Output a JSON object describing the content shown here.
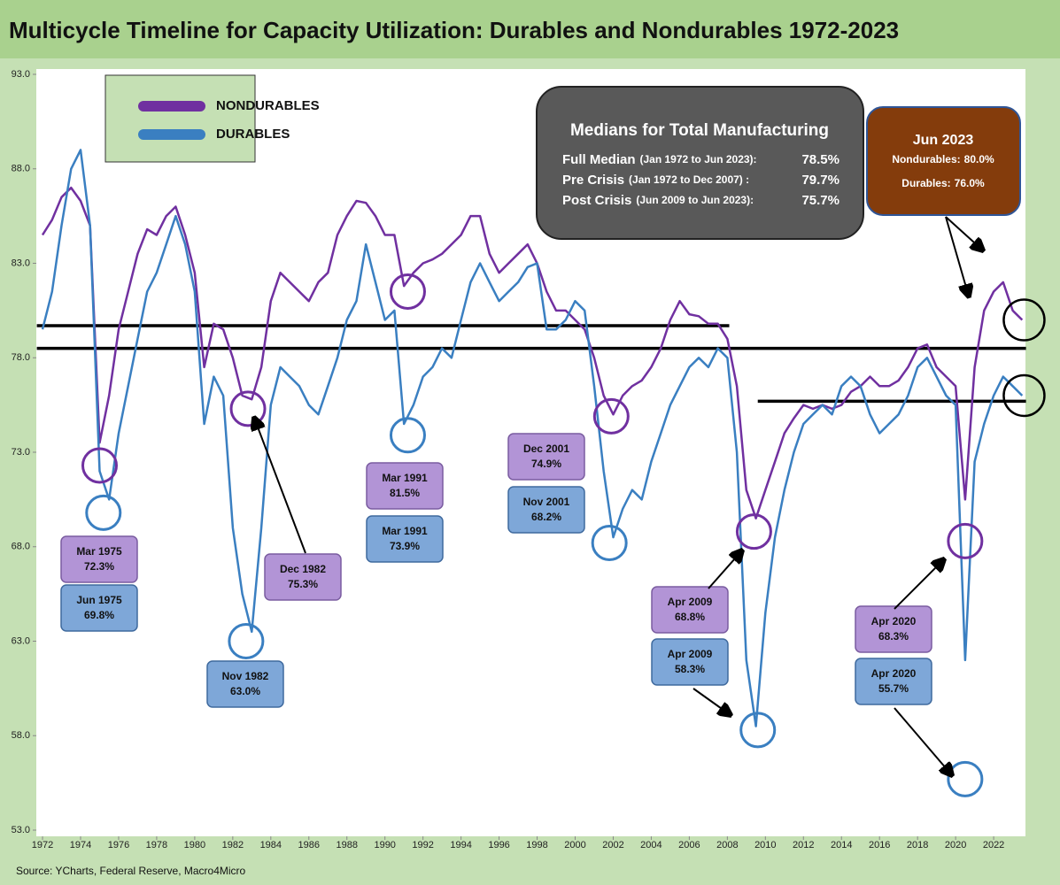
{
  "chart_data": {
    "type": "line",
    "title": "Multicycle Timeline for Capacity Utilization: Durables and Nondurables 1972-2023",
    "source": "Source: YCharts, Federal Reserve, Macro4Micro",
    "xlim": [
      1971.7,
      2023.7
    ],
    "xticks": [
      1972,
      1974,
      1976,
      1978,
      1980,
      1982,
      1984,
      1986,
      1988,
      1990,
      1992,
      1994,
      1996,
      1998,
      2000,
      2002,
      2004,
      2006,
      2008,
      2010,
      2012,
      2014,
      2016,
      2018,
      2020,
      2022
    ],
    "ylim": [
      53,
      93
    ],
    "yticks": [
      {
        "value": 53,
        "label": "53.0"
      },
      {
        "value": 58,
        "label": "58.0"
      },
      {
        "value": 63,
        "label": "63.0"
      },
      {
        "value": 68,
        "label": "68.0"
      },
      {
        "value": 73,
        "label": "73.0"
      },
      {
        "value": 78,
        "label": "78.0"
      },
      {
        "value": 83,
        "label": "83.0"
      },
      {
        "value": 88,
        "label": "88.0"
      },
      {
        "value": 93,
        "label": "93.0"
      }
    ],
    "x": [
      1972.0,
      1972.5,
      1973.0,
      1973.5,
      1974.0,
      1974.5,
      1975.0,
      1975.5,
      1976.0,
      1976.5,
      1977.0,
      1977.5,
      1978.0,
      1978.5,
      1979.0,
      1979.5,
      1980.0,
      1980.5,
      1981.0,
      1981.5,
      1982.0,
      1982.5,
      1983.0,
      1983.5,
      1984.0,
      1984.5,
      1985.0,
      1985.5,
      1986.0,
      1986.5,
      1987.0,
      1987.5,
      1988.0,
      1988.5,
      1989.0,
      1989.5,
      1990.0,
      1990.5,
      1991.0,
      1991.5,
      1992.0,
      1992.5,
      1993.0,
      1993.5,
      1994.0,
      1994.5,
      1995.0,
      1995.5,
      1996.0,
      1996.5,
      1997.0,
      1997.5,
      1998.0,
      1998.5,
      1999.0,
      1999.5,
      2000.0,
      2000.5,
      2001.0,
      2001.5,
      2002.0,
      2002.5,
      2003.0,
      2003.5,
      2004.0,
      2004.5,
      2005.0,
      2005.5,
      2006.0,
      2006.5,
      2007.0,
      2007.5,
      2008.0,
      2008.5,
      2009.0,
      2009.5,
      2010.0,
      2010.5,
      2011.0,
      2011.5,
      2012.0,
      2012.5,
      2013.0,
      2013.5,
      2014.0,
      2014.5,
      2015.0,
      2015.5,
      2016.0,
      2016.5,
      2017.0,
      2017.5,
      2018.0,
      2018.5,
      2019.0,
      2019.5,
      2020.0,
      2020.5,
      2021.0,
      2021.5,
      2022.0,
      2022.5,
      2023.0,
      2023.5
    ],
    "series": [
      {
        "name": "NONDURABLES",
        "color": "#7030a0",
        "values": [
          84.5,
          85.3,
          86.5,
          87.0,
          86.3,
          85.0,
          73.5,
          76.0,
          79.5,
          81.5,
          83.5,
          84.8,
          84.5,
          85.5,
          86.0,
          84.5,
          82.5,
          77.5,
          79.8,
          79.5,
          78.0,
          76.0,
          75.8,
          77.5,
          81.0,
          82.5,
          82.0,
          81.5,
          81.0,
          82.0,
          82.5,
          84.5,
          85.5,
          86.3,
          86.2,
          85.5,
          84.5,
          84.5,
          81.8,
          82.5,
          83.0,
          83.2,
          83.5,
          84.0,
          84.5,
          85.5,
          85.5,
          83.5,
          82.5,
          83.0,
          83.5,
          84.0,
          83.0,
          81.5,
          80.5,
          80.5,
          80.0,
          79.5,
          78.0,
          76.0,
          75.0,
          76.0,
          76.5,
          76.8,
          77.5,
          78.5,
          80.0,
          81.0,
          80.3,
          80.2,
          79.8,
          79.8,
          79.0,
          76.5,
          71.0,
          69.5,
          71.0,
          72.5,
          74.0,
          74.8,
          75.5,
          75.3,
          75.5,
          75.3,
          75.5,
          76.2,
          76.5,
          77.0,
          76.5,
          76.5,
          76.8,
          77.5,
          78.5,
          78.7,
          77.5,
          77.0,
          76.5,
          70.5,
          77.5,
          80.5,
          81.5,
          82.0,
          80.5,
          80.0
        ]
      },
      {
        "name": "DURABLES",
        "color": "#3a7fc1",
        "values": [
          79.5,
          81.5,
          85.0,
          88.0,
          89.0,
          85.0,
          72.0,
          70.5,
          74.0,
          76.5,
          79.0,
          81.5,
          82.5,
          84.0,
          85.5,
          84.0,
          81.5,
          74.5,
          77.0,
          76.0,
          69.0,
          65.5,
          63.5,
          69.0,
          75.5,
          77.5,
          77.0,
          76.5,
          75.5,
          75.0,
          76.5,
          78.0,
          80.0,
          81.0,
          84.0,
          82.0,
          80.0,
          80.5,
          74.5,
          75.5,
          77.0,
          77.5,
          78.5,
          78.0,
          80.0,
          82.0,
          83.0,
          82.0,
          81.0,
          81.5,
          82.0,
          82.8,
          83.0,
          79.5,
          79.5,
          80.0,
          81.0,
          80.5,
          76.5,
          72.0,
          68.5,
          70.0,
          71.0,
          70.5,
          72.5,
          74.0,
          75.5,
          76.5,
          77.5,
          78.0,
          77.5,
          78.5,
          78.0,
          73.0,
          62.0,
          58.5,
          64.5,
          68.5,
          71.0,
          73.0,
          74.5,
          75.0,
          75.5,
          75.0,
          76.5,
          77.0,
          76.5,
          75.0,
          74.0,
          74.5,
          75.0,
          76.0,
          77.5,
          78.0,
          77.0,
          76.0,
          75.5,
          62.0,
          72.5,
          74.5,
          76.0,
          77.0,
          76.5,
          76.0
        ]
      }
    ],
    "legend": "top-left",
    "medians": {
      "title": "Medians for Total Manufacturing",
      "rows": [
        {
          "label": "Full Median",
          "range": "(Jan 1972 to Jun 2023):",
          "value": 78.5,
          "value_label": "78.5%",
          "span": [
            1971.7,
            2023.7
          ]
        },
        {
          "label": "Pre Crisis",
          "range": "(Jan 1972 to Dec 2007) :",
          "value": 79.7,
          "value_label": "79.7%",
          "span": [
            1971.7,
            2008.1
          ]
        },
        {
          "label": "Post Crisis",
          "range": "(Jun 2009 to Jun 2023):",
          "value": 75.7,
          "value_label": "75.7%",
          "span": [
            2009.6,
            2023.7
          ]
        }
      ]
    },
    "latest": {
      "title": "Jun 2023",
      "x": 2023.6,
      "rows": [
        {
          "label": "Nondurables:",
          "value": 80.0,
          "value_label": "80.0%"
        },
        {
          "label": "Durables:",
          "value": 76.0,
          "value_label": "76.0%"
        }
      ]
    },
    "annotations": [
      {
        "title": "Mar 1975",
        "x": 1975.0,
        "value": 72.3,
        "value_label": "72.3%",
        "series": 0
      },
      {
        "title": "Jun 1975",
        "x": 1975.2,
        "value": 69.8,
        "value_label": "69.8%",
        "series": 1
      },
      {
        "title": "Dec 1982",
        "x": 1982.8,
        "value": 75.3,
        "value_label": "75.3%",
        "series": 0
      },
      {
        "title": "Nov 1982",
        "x": 1982.7,
        "value": 63.0,
        "value_label": "63.0%",
        "series": 1
      },
      {
        "title": "Mar 1991",
        "x": 1991.2,
        "value": 81.5,
        "value_label": "81.5%",
        "series": 0
      },
      {
        "title": "Mar 1991",
        "x": 1991.2,
        "value": 73.9,
        "value_label": "73.9%",
        "series": 1
      },
      {
        "title": "Dec 2001",
        "x": 2001.9,
        "value": 74.9,
        "value_label": "74.9%",
        "series": 0
      },
      {
        "title": "Nov 2001",
        "x": 2001.8,
        "value": 68.2,
        "value_label": "68.2%",
        "series": 1
      },
      {
        "title": "Apr 2009",
        "x": 2009.4,
        "value": 68.8,
        "value_label": "68.8%",
        "series": 0
      },
      {
        "title": "Apr 2009",
        "x": 2009.6,
        "value": 58.3,
        "value_label": "58.3%",
        "series": 1
      },
      {
        "title": "Apr 2020",
        "x": 2020.5,
        "value": 68.3,
        "value_label": "68.3%",
        "series": 0
      },
      {
        "title": "Apr 2020",
        "x": 2020.5,
        "value": 55.7,
        "value_label": "55.7%",
        "series": 1
      }
    ]
  }
}
